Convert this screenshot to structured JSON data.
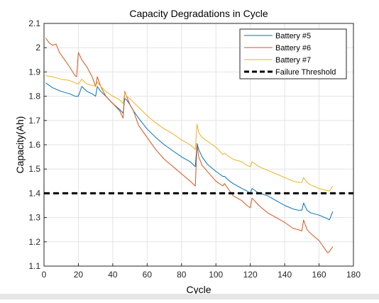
{
  "chart_data": {
    "type": "line",
    "title": "Capacity Degradations in Cycle",
    "xlabel": "Cycle",
    "ylabel": "Capacity(Ah)",
    "xlim": [
      0,
      180
    ],
    "ylim": [
      1.1,
      2.1
    ],
    "xticks": [
      0,
      20,
      40,
      60,
      80,
      100,
      120,
      140,
      160,
      180
    ],
    "yticks": [
      1.1,
      1.2,
      1.3,
      1.4,
      1.5,
      1.6,
      1.7,
      1.8,
      1.9,
      2,
      2.1
    ],
    "xtick_labels": [
      "0",
      "20",
      "40",
      "60",
      "80",
      "100",
      "120",
      "140",
      "160",
      "180"
    ],
    "ytick_labels": [
      "1.1",
      "1.2",
      "1.3",
      "1.4",
      "1.5",
      "1.6",
      "1.7",
      "1.8",
      "1.9",
      "2",
      "2.1"
    ],
    "grid": true,
    "legend_position": "top-right",
    "series": [
      {
        "name": "Battery #5",
        "color": "#0072BD",
        "x": [
          1,
          5,
          10,
          15,
          18,
          20,
          22,
          25,
          28,
          30,
          31,
          33,
          36,
          40,
          44,
          46,
          47,
          48,
          50,
          52,
          55,
          60,
          65,
          70,
          75,
          80,
          85,
          88,
          89,
          90,
          92,
          95,
          100,
          104,
          105,
          108,
          110,
          115,
          118,
          120,
          121,
          125,
          130,
          135,
          140,
          145,
          148,
          150,
          151,
          153,
          155,
          160,
          165,
          166,
          168
        ],
        "values": [
          1.855,
          1.835,
          1.82,
          1.81,
          1.8,
          1.8,
          1.84,
          1.82,
          1.81,
          1.8,
          1.84,
          1.82,
          1.8,
          1.77,
          1.745,
          1.73,
          1.79,
          1.785,
          1.765,
          1.74,
          1.71,
          1.665,
          1.63,
          1.6,
          1.575,
          1.55,
          1.53,
          1.51,
          1.605,
          1.58,
          1.55,
          1.52,
          1.49,
          1.47,
          1.47,
          1.45,
          1.44,
          1.42,
          1.41,
          1.4,
          1.42,
          1.4,
          1.39,
          1.37,
          1.35,
          1.335,
          1.33,
          1.33,
          1.36,
          1.33,
          1.32,
          1.31,
          1.295,
          1.29,
          1.325
        ]
      },
      {
        "name": "Battery #6",
        "color": "#D95319",
        "x": [
          1,
          3,
          5,
          7,
          9,
          12,
          15,
          18,
          19,
          20,
          22,
          25,
          28,
          30,
          31,
          33,
          36,
          40,
          44,
          46,
          47,
          48,
          50,
          52,
          55,
          60,
          65,
          70,
          75,
          80,
          85,
          88,
          89,
          90,
          92,
          95,
          100,
          104,
          105,
          108,
          110,
          115,
          118,
          120,
          121,
          125,
          130,
          135,
          140,
          145,
          148,
          150,
          151,
          153,
          155,
          160,
          163,
          165,
          166,
          168
        ],
        "values": [
          2.04,
          2.02,
          2.01,
          2.015,
          1.98,
          1.95,
          1.92,
          1.885,
          1.88,
          1.98,
          1.95,
          1.92,
          1.88,
          1.84,
          1.88,
          1.84,
          1.8,
          1.77,
          1.74,
          1.71,
          1.82,
          1.8,
          1.765,
          1.74,
          1.68,
          1.63,
          1.58,
          1.54,
          1.51,
          1.48,
          1.45,
          1.43,
          1.6,
          1.55,
          1.515,
          1.49,
          1.45,
          1.43,
          1.44,
          1.41,
          1.39,
          1.37,
          1.35,
          1.34,
          1.38,
          1.35,
          1.32,
          1.3,
          1.28,
          1.255,
          1.25,
          1.245,
          1.29,
          1.25,
          1.235,
          1.205,
          1.175,
          1.155,
          1.16,
          1.18
        ]
      },
      {
        "name": "Battery #7",
        "color": "#EDB120",
        "x": [
          1,
          5,
          10,
          15,
          18,
          20,
          22,
          25,
          28,
          30,
          31,
          33,
          36,
          40,
          44,
          46,
          47,
          48,
          50,
          52,
          55,
          60,
          65,
          70,
          75,
          80,
          85,
          88,
          89,
          90,
          92,
          95,
          100,
          104,
          105,
          108,
          110,
          115,
          118,
          120,
          121,
          125,
          130,
          135,
          140,
          145,
          148,
          150,
          151,
          153,
          155,
          160,
          165,
          166,
          168
        ],
        "values": [
          1.885,
          1.88,
          1.87,
          1.865,
          1.855,
          1.85,
          1.87,
          1.85,
          1.845,
          1.84,
          1.86,
          1.84,
          1.82,
          1.8,
          1.785,
          1.77,
          1.815,
          1.8,
          1.79,
          1.775,
          1.755,
          1.72,
          1.69,
          1.665,
          1.645,
          1.62,
          1.6,
          1.58,
          1.685,
          1.65,
          1.63,
          1.615,
          1.59,
          1.56,
          1.565,
          1.55,
          1.54,
          1.53,
          1.515,
          1.51,
          1.53,
          1.51,
          1.495,
          1.48,
          1.465,
          1.45,
          1.445,
          1.445,
          1.465,
          1.445,
          1.435,
          1.42,
          1.41,
          1.41,
          1.43
        ]
      },
      {
        "name": "Failure Threshold",
        "color": "#000000",
        "style": "dashed",
        "x": [
          0,
          180
        ],
        "values": [
          1.4,
          1.4
        ]
      }
    ]
  }
}
